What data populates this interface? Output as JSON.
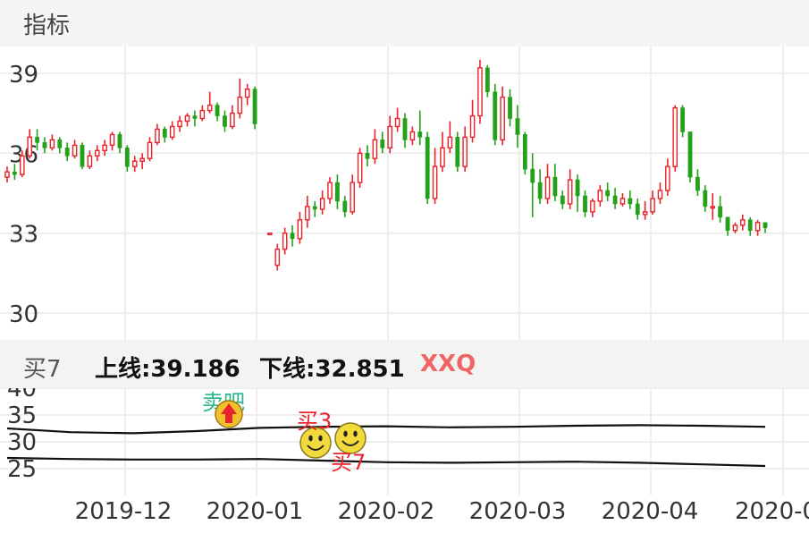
{
  "header": {
    "title": "指标"
  },
  "colors": {
    "up": "#e8232a",
    "down": "#23a11a",
    "grid": "#eeeeee",
    "axis_text": "#333333",
    "signal_text": "#e8232a",
    "sell_text": "#2ab78c",
    "tag": "#f06463"
  },
  "indicator": {
    "name": "买7",
    "upper_label": "上线:39.186",
    "lower_label": "下线:32.851",
    "tag": "XXQ"
  },
  "signals": [
    {
      "label": "卖吧",
      "icon": "sell-arrow-icon"
    },
    {
      "label": "买3",
      "icon": "smiley-icon"
    },
    {
      "label": "买7",
      "icon": "smiley-icon"
    }
  ],
  "chart_data": [
    {
      "type": "candlestick",
      "ylim": [
        29,
        40
      ],
      "ytick_values": [
        30,
        33,
        36,
        39
      ],
      "ytick_labels": [
        "30",
        "33",
        "36",
        "39"
      ],
      "xtick_labels": [
        "2019-12",
        "2020-01",
        "2020-02",
        "2020-03",
        "2020-04",
        "2020-0"
      ],
      "grid": true,
      "candles": [
        [
          35.1,
          35.3,
          34.9,
          35.5
        ],
        [
          35.3,
          35.2,
          35.0,
          35.6
        ],
        [
          35.2,
          35.9,
          35.1,
          36.1
        ],
        [
          35.9,
          36.6,
          35.8,
          36.9
        ],
        [
          36.6,
          36.4,
          36.1,
          36.9
        ],
        [
          36.4,
          36.2,
          36.0,
          36.6
        ],
        [
          36.2,
          36.5,
          36.1,
          36.7
        ],
        [
          36.5,
          36.2,
          36.0,
          36.6
        ],
        [
          36.2,
          35.9,
          35.7,
          36.4
        ],
        [
          35.9,
          36.3,
          35.8,
          36.5
        ],
        [
          36.3,
          35.5,
          35.4,
          36.4
        ],
        [
          35.5,
          35.9,
          35.4,
          36.1
        ],
        [
          35.9,
          36.1,
          35.7,
          36.3
        ],
        [
          36.1,
          36.3,
          35.9,
          36.5
        ],
        [
          36.3,
          36.7,
          36.1,
          36.8
        ],
        [
          36.7,
          36.2,
          36.0,
          36.8
        ],
        [
          36.2,
          35.5,
          35.3,
          36.3
        ],
        [
          35.5,
          35.7,
          35.3,
          35.9
        ],
        [
          35.7,
          35.8,
          35.4,
          36.0
        ],
        [
          35.8,
          36.4,
          35.7,
          36.6
        ],
        [
          36.4,
          36.9,
          36.3,
          37.1
        ],
        [
          36.9,
          36.6,
          36.4,
          37.0
        ],
        [
          36.6,
          37.0,
          36.5,
          37.2
        ],
        [
          37.0,
          37.2,
          36.8,
          37.4
        ],
        [
          37.2,
          37.4,
          37.0,
          37.5
        ],
        [
          37.4,
          37.3,
          37.0,
          37.6
        ],
        [
          37.3,
          37.6,
          37.2,
          37.8
        ],
        [
          37.6,
          37.8,
          37.5,
          38.3
        ],
        [
          37.8,
          37.4,
          37.2,
          37.9
        ],
        [
          37.4,
          37.0,
          36.8,
          37.6
        ],
        [
          37.0,
          37.5,
          36.9,
          37.8
        ],
        [
          37.5,
          38.1,
          37.3,
          38.8
        ],
        [
          38.1,
          38.4,
          37.8,
          38.6
        ],
        [
          38.4,
          37.1,
          36.9,
          38.5
        ],
        null,
        [
          33.0,
          33.0,
          33.0,
          33.0
        ],
        [
          31.8,
          32.4,
          31.6,
          32.6
        ],
        [
          32.4,
          33.0,
          32.2,
          33.2
        ],
        [
          33.0,
          32.8,
          32.5,
          33.3
        ],
        [
          32.8,
          33.5,
          32.6,
          33.8
        ],
        [
          33.5,
          34.0,
          33.2,
          34.4
        ],
        [
          34.0,
          33.9,
          33.6,
          34.2
        ],
        [
          33.9,
          34.3,
          33.7,
          34.6
        ],
        [
          34.3,
          34.9,
          34.1,
          35.1
        ],
        [
          34.9,
          34.2,
          33.9,
          35.2
        ],
        [
          34.2,
          33.8,
          33.6,
          34.4
        ],
        [
          33.8,
          34.9,
          33.7,
          35.2
        ],
        [
          34.9,
          36.0,
          34.7,
          36.2
        ],
        [
          36.0,
          35.8,
          35.5,
          36.3
        ],
        [
          35.8,
          36.5,
          35.6,
          36.9
        ],
        [
          36.5,
          36.2,
          36.0,
          36.8
        ],
        [
          36.2,
          37.0,
          36.0,
          37.4
        ],
        [
          37.0,
          37.3,
          36.8,
          37.7
        ],
        [
          37.3,
          36.5,
          36.2,
          37.5
        ],
        [
          36.5,
          36.8,
          36.3,
          37.0
        ],
        [
          36.8,
          36.6,
          36.3,
          37.6
        ],
        [
          36.6,
          34.3,
          34.1,
          36.8
        ],
        [
          34.3,
          35.5,
          34.1,
          36.2
        ],
        [
          35.5,
          36.2,
          35.3,
          36.8
        ],
        [
          36.2,
          36.6,
          36.0,
          37.2
        ],
        [
          36.6,
          35.5,
          35.3,
          36.8
        ],
        [
          35.5,
          36.6,
          35.3,
          37.0
        ],
        [
          36.6,
          37.4,
          36.4,
          38.0
        ],
        [
          37.4,
          39.2,
          37.1,
          39.5
        ],
        [
          39.2,
          38.3,
          38.1,
          39.3
        ],
        [
          38.3,
          36.5,
          36.3,
          38.6
        ],
        [
          36.5,
          38.1,
          36.3,
          38.5
        ],
        [
          38.1,
          37.3,
          37.0,
          38.4
        ],
        [
          37.3,
          36.7,
          36.2,
          37.8
        ],
        [
          36.7,
          35.4,
          35.2,
          36.8
        ],
        [
          35.4,
          34.9,
          33.6,
          36.0
        ],
        [
          34.9,
          34.3,
          34.1,
          35.4
        ],
        [
          34.3,
          35.1,
          34.1,
          35.6
        ],
        [
          35.1,
          34.4,
          34.2,
          35.6
        ],
        [
          34.4,
          34.1,
          33.9,
          34.6
        ],
        [
          34.1,
          35.0,
          33.9,
          35.4
        ],
        [
          35.0,
          34.4,
          33.8,
          35.2
        ],
        [
          34.4,
          33.8,
          33.6,
          34.6
        ],
        [
          33.8,
          34.2,
          33.6,
          34.3
        ],
        [
          34.2,
          34.6,
          34.0,
          34.8
        ],
        [
          34.6,
          34.4,
          34.2,
          34.9
        ],
        [
          34.4,
          34.1,
          33.9,
          34.7
        ],
        [
          34.1,
          34.3,
          34.0,
          34.5
        ],
        [
          34.3,
          34.1,
          33.9,
          34.6
        ],
        [
          34.1,
          33.7,
          33.5,
          34.3
        ],
        [
          33.7,
          33.8,
          33.5,
          34.2
        ],
        [
          33.8,
          34.3,
          33.7,
          34.6
        ],
        [
          34.3,
          34.6,
          34.1,
          34.9
        ],
        [
          34.6,
          35.5,
          34.4,
          35.8
        ],
        [
          35.5,
          37.7,
          35.3,
          37.8
        ],
        [
          37.7,
          36.8,
          36.6,
          37.8
        ],
        [
          36.8,
          35.1,
          34.9,
          35.5
        ],
        [
          35.1,
          34.6,
          34.4,
          35.4
        ],
        [
          34.6,
          34.0,
          33.8,
          34.8
        ],
        [
          34.0,
          34.0,
          33.5,
          34.5
        ],
        [
          34.0,
          33.6,
          33.4,
          34.4
        ],
        [
          33.6,
          33.1,
          32.9,
          33.5
        ],
        [
          33.1,
          33.3,
          33.0,
          33.4
        ],
        [
          33.3,
          33.5,
          33.1,
          33.7
        ],
        [
          33.5,
          33.1,
          32.9,
          33.6
        ],
        [
          33.1,
          33.4,
          32.9,
          33.5
        ],
        [
          33.4,
          33.2,
          33.0,
          33.4
        ]
      ]
    },
    {
      "type": "line",
      "ytick_labels": [
        "25",
        "30",
        "35",
        "40"
      ],
      "ytick_values": [
        25,
        30,
        35,
        40
      ],
      "ylim": [
        20,
        40
      ],
      "series": [
        {
          "values": [
            32.5,
            31.8,
            31.6,
            32.0,
            32.6,
            32.8,
            32.9,
            32.7,
            32.8,
            33.0,
            33.1,
            33.0,
            32.8
          ]
        },
        {
          "values": [
            27.0,
            26.8,
            26.7,
            26.7,
            26.8,
            26.5,
            26.2,
            26.1,
            26.2,
            26.3,
            26.1,
            25.8,
            25.5
          ]
        }
      ]
    }
  ]
}
